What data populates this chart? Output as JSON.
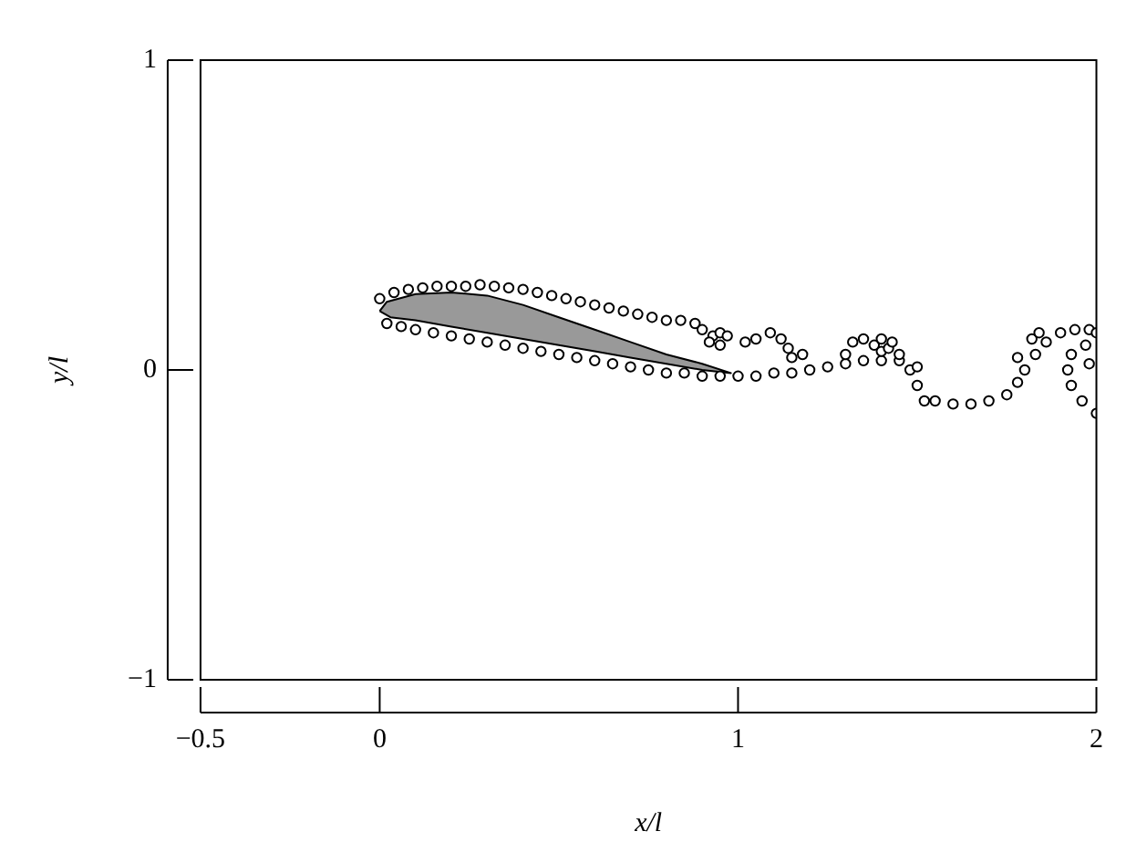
{
  "chart_data": {
    "type": "scatter",
    "xlabel": "x/l",
    "ylabel": "y/l",
    "xlim": [
      -0.5,
      2
    ],
    "ylim": [
      -1,
      1
    ],
    "xticks": [
      {
        "value": -0.5,
        "label": "−0.5"
      },
      0,
      1,
      2
    ],
    "yticks": [
      {
        "value": -1,
        "label": "−1"
      },
      0,
      1
    ],
    "grid": false,
    "legend": false,
    "series": [
      {
        "type": "area",
        "color": "#999999",
        "x": [
          0,
          0.02,
          0.1,
          0.2,
          0.3,
          0.4,
          0.5,
          0.6,
          0.7,
          0.8,
          0.9,
          0.98,
          0.9,
          0.8,
          0.7,
          0.6,
          0.5,
          0.4,
          0.3,
          0.2,
          0.1,
          0.03,
          0
        ],
        "values": [
          0.19,
          0.22,
          0.245,
          0.25,
          0.24,
          0.21,
          0.17,
          0.13,
          0.09,
          0.05,
          0.02,
          -0.01,
          0.0,
          0.02,
          0.04,
          0.06,
          0.08,
          0.1,
          0.12,
          0.14,
          0.16,
          0.17,
          0.19
        ]
      },
      {
        "marker": "circle",
        "color": "#000000",
        "x": [
          0,
          0.04,
          0.08,
          0.12,
          0.16,
          0.2,
          0.24,
          0.28,
          0.32,
          0.36,
          0.4,
          0.44,
          0.48,
          0.52,
          0.56,
          0.6,
          0.64,
          0.68,
          0.72,
          0.76,
          0.8,
          0.84,
          0.88,
          0.9,
          0.93,
          0.95,
          0.97,
          0.95,
          0.92,
          0.02,
          0.06,
          0.1,
          0.15,
          0.2,
          0.25,
          0.3,
          0.35,
          0.4,
          0.45,
          0.5,
          0.55,
          0.6,
          0.65,
          0.7,
          0.75,
          0.8,
          0.85,
          0.9,
          0.95,
          1.0,
          1.05,
          1.1,
          1.15,
          1.2,
          1.25,
          1.3,
          1.35,
          1.4,
          1.45,
          1.48,
          1.5,
          1.52,
          1.55,
          1.6,
          1.65,
          1.7,
          1.75,
          1.78,
          1.8,
          1.83,
          1.86,
          1.9,
          1.94,
          1.98,
          2.0,
          1.93,
          1.92,
          1.93,
          1.96,
          2.0,
          1.97,
          1.98,
          1.02,
          1.05,
          1.09,
          1.12,
          1.14,
          1.15,
          1.18,
          1.32,
          1.35,
          1.38,
          1.4,
          1.42,
          1.45,
          1.3,
          1.4,
          1.43,
          1.5,
          1.78,
          1.82,
          1.84
        ],
        "values": [
          0.23,
          0.25,
          0.26,
          0.265,
          0.27,
          0.27,
          0.27,
          0.275,
          0.27,
          0.265,
          0.26,
          0.25,
          0.24,
          0.23,
          0.22,
          0.21,
          0.2,
          0.19,
          0.18,
          0.17,
          0.16,
          0.16,
          0.15,
          0.13,
          0.11,
          0.12,
          0.11,
          0.08,
          0.09,
          0.15,
          0.14,
          0.13,
          0.12,
          0.11,
          0.1,
          0.09,
          0.08,
          0.07,
          0.06,
          0.05,
          0.04,
          0.03,
          0.02,
          0.01,
          0.0,
          -0.01,
          -0.01,
          -0.02,
          -0.02,
          -0.02,
          -0.02,
          -0.01,
          -0.01,
          0.0,
          0.01,
          0.02,
          0.03,
          0.03,
          0.03,
          0.0,
          -0.05,
          -0.1,
          -0.1,
          -0.11,
          -0.11,
          -0.1,
          -0.08,
          -0.04,
          0.0,
          0.05,
          0.09,
          0.12,
          0.13,
          0.13,
          0.12,
          0.05,
          0.0,
          -0.05,
          -0.1,
          -0.14,
          0.08,
          0.02,
          0.09,
          0.1,
          0.12,
          0.1,
          0.07,
          0.04,
          0.05,
          0.09,
          0.1,
          0.08,
          0.06,
          0.07,
          0.05,
          0.05,
          0.1,
          0.09,
          0.01,
          0.04,
          0.1,
          0.12
        ]
      }
    ]
  }
}
